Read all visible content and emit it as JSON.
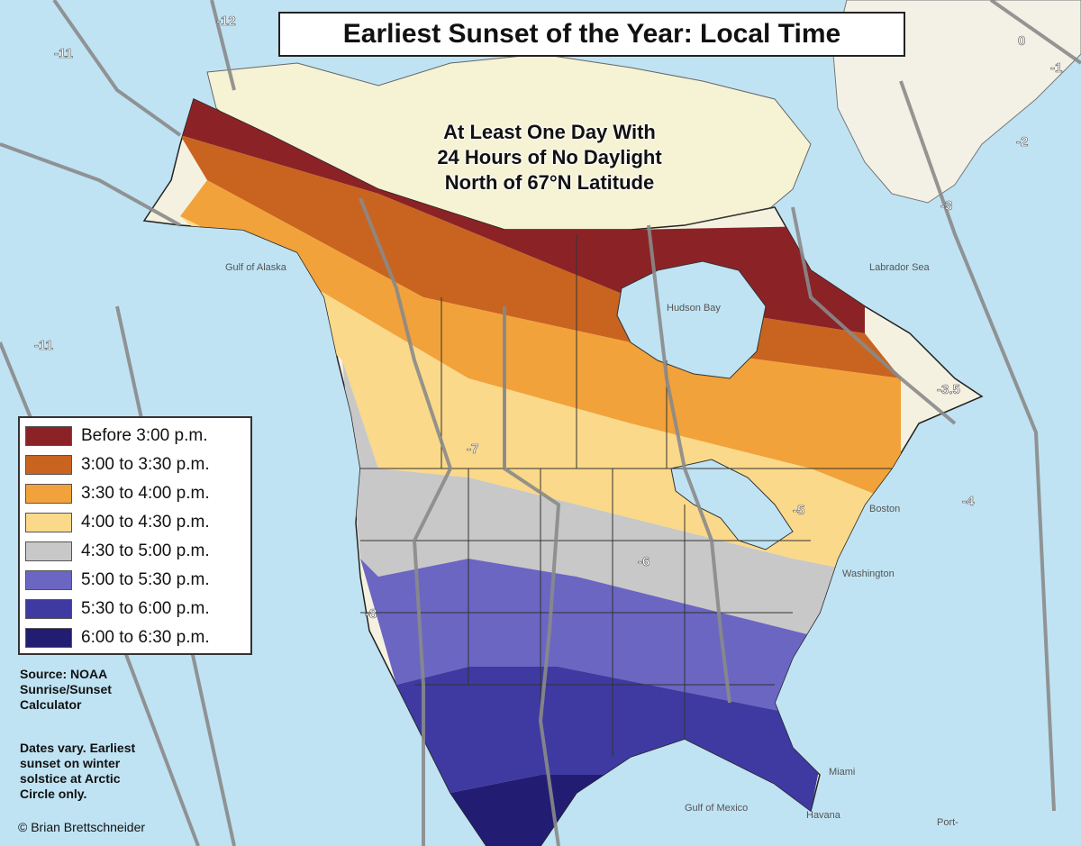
{
  "title": "Earliest Sunset of the Year: Local Time",
  "arctic_note": [
    "At Least One Day With",
    "24 Hours of No Daylight",
    "North of 67°N Latitude"
  ],
  "legend": [
    {
      "label": "Before 3:00 p.m.",
      "color": "#8b2326"
    },
    {
      "label": "3:00 to 3:30 p.m.",
      "color": "#c8641f"
    },
    {
      "label": "3:30 to 4:00 p.m.",
      "color": "#f2a23a"
    },
    {
      "label": "4:00 to 4:30 p.m.",
      "color": "#fbd98a"
    },
    {
      "label": "4:30 to 5:00 p.m.",
      "color": "#c9c8c8"
    },
    {
      "label": "5:00 to 5:30 p.m.",
      "color": "#6b66c2"
    },
    {
      "label": "5:30 to 6:00 p.m.",
      "color": "#3f3aa1"
    },
    {
      "label": "6:00 to 6:30 p.m.",
      "color": "#231c73"
    }
  ],
  "source": [
    "Source: NOAA",
    "Sunrise/Sunset",
    "Calculator"
  ],
  "notes": [
    "Dates vary. Earliest",
    "sunset on winter",
    "solstice at Arctic",
    "Circle only."
  ],
  "credit": "© Brian Brettschneider",
  "timezone_labels": [
    "-12",
    "-11",
    "-11",
    "-8",
    "-7",
    "-6",
    "-5",
    "-4",
    "-3",
    "-3.5",
    "-2",
    "-1",
    "0"
  ],
  "place_labels": [
    "Gulf of Alaska",
    "Hudson Bay",
    "Labrador Sea",
    "Gulf of Mexico",
    "Miami",
    "Havana",
    "Boston",
    "Washington",
    "Port-"
  ],
  "colors": {
    "ocean": "#bfe3f3",
    "land": "#f5f1e0",
    "arctic_polar_night": "#f6f2d4",
    "tz_border": "#8a8a8a"
  }
}
